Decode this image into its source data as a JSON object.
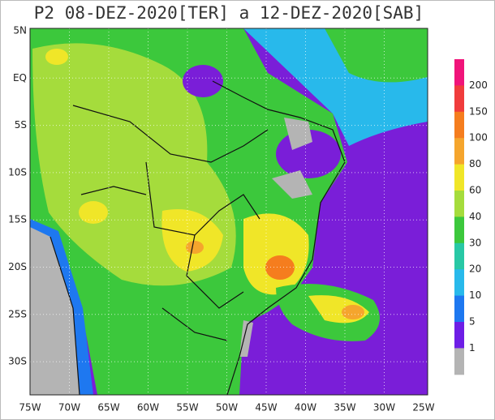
{
  "title": "P2 08-DEZ-2020[TER] a 12-DEZ-2020[SAB]",
  "lat_labels": [
    "5N",
    "EQ",
    "5S",
    "10S",
    "15S",
    "20S",
    "25S",
    "30S"
  ],
  "lon_labels": [
    "75W",
    "70W",
    "65W",
    "60W",
    "55W",
    "50W",
    "45W",
    "40W",
    "35W",
    "30W",
    "25W"
  ],
  "colorbar": {
    "labels": [
      200,
      150,
      100,
      80,
      60,
      40,
      30,
      20,
      10,
      5,
      1
    ],
    "colors": [
      "#f0147a",
      "#f03c3c",
      "#f57d1e",
      "#f5a52d",
      "#f0e628",
      "#a5dc3c",
      "#3cc83c",
      "#28c8a5",
      "#28b9eb",
      "#1e78f0",
      "#6e1ee6",
      "#b4b4b4"
    ]
  }
}
